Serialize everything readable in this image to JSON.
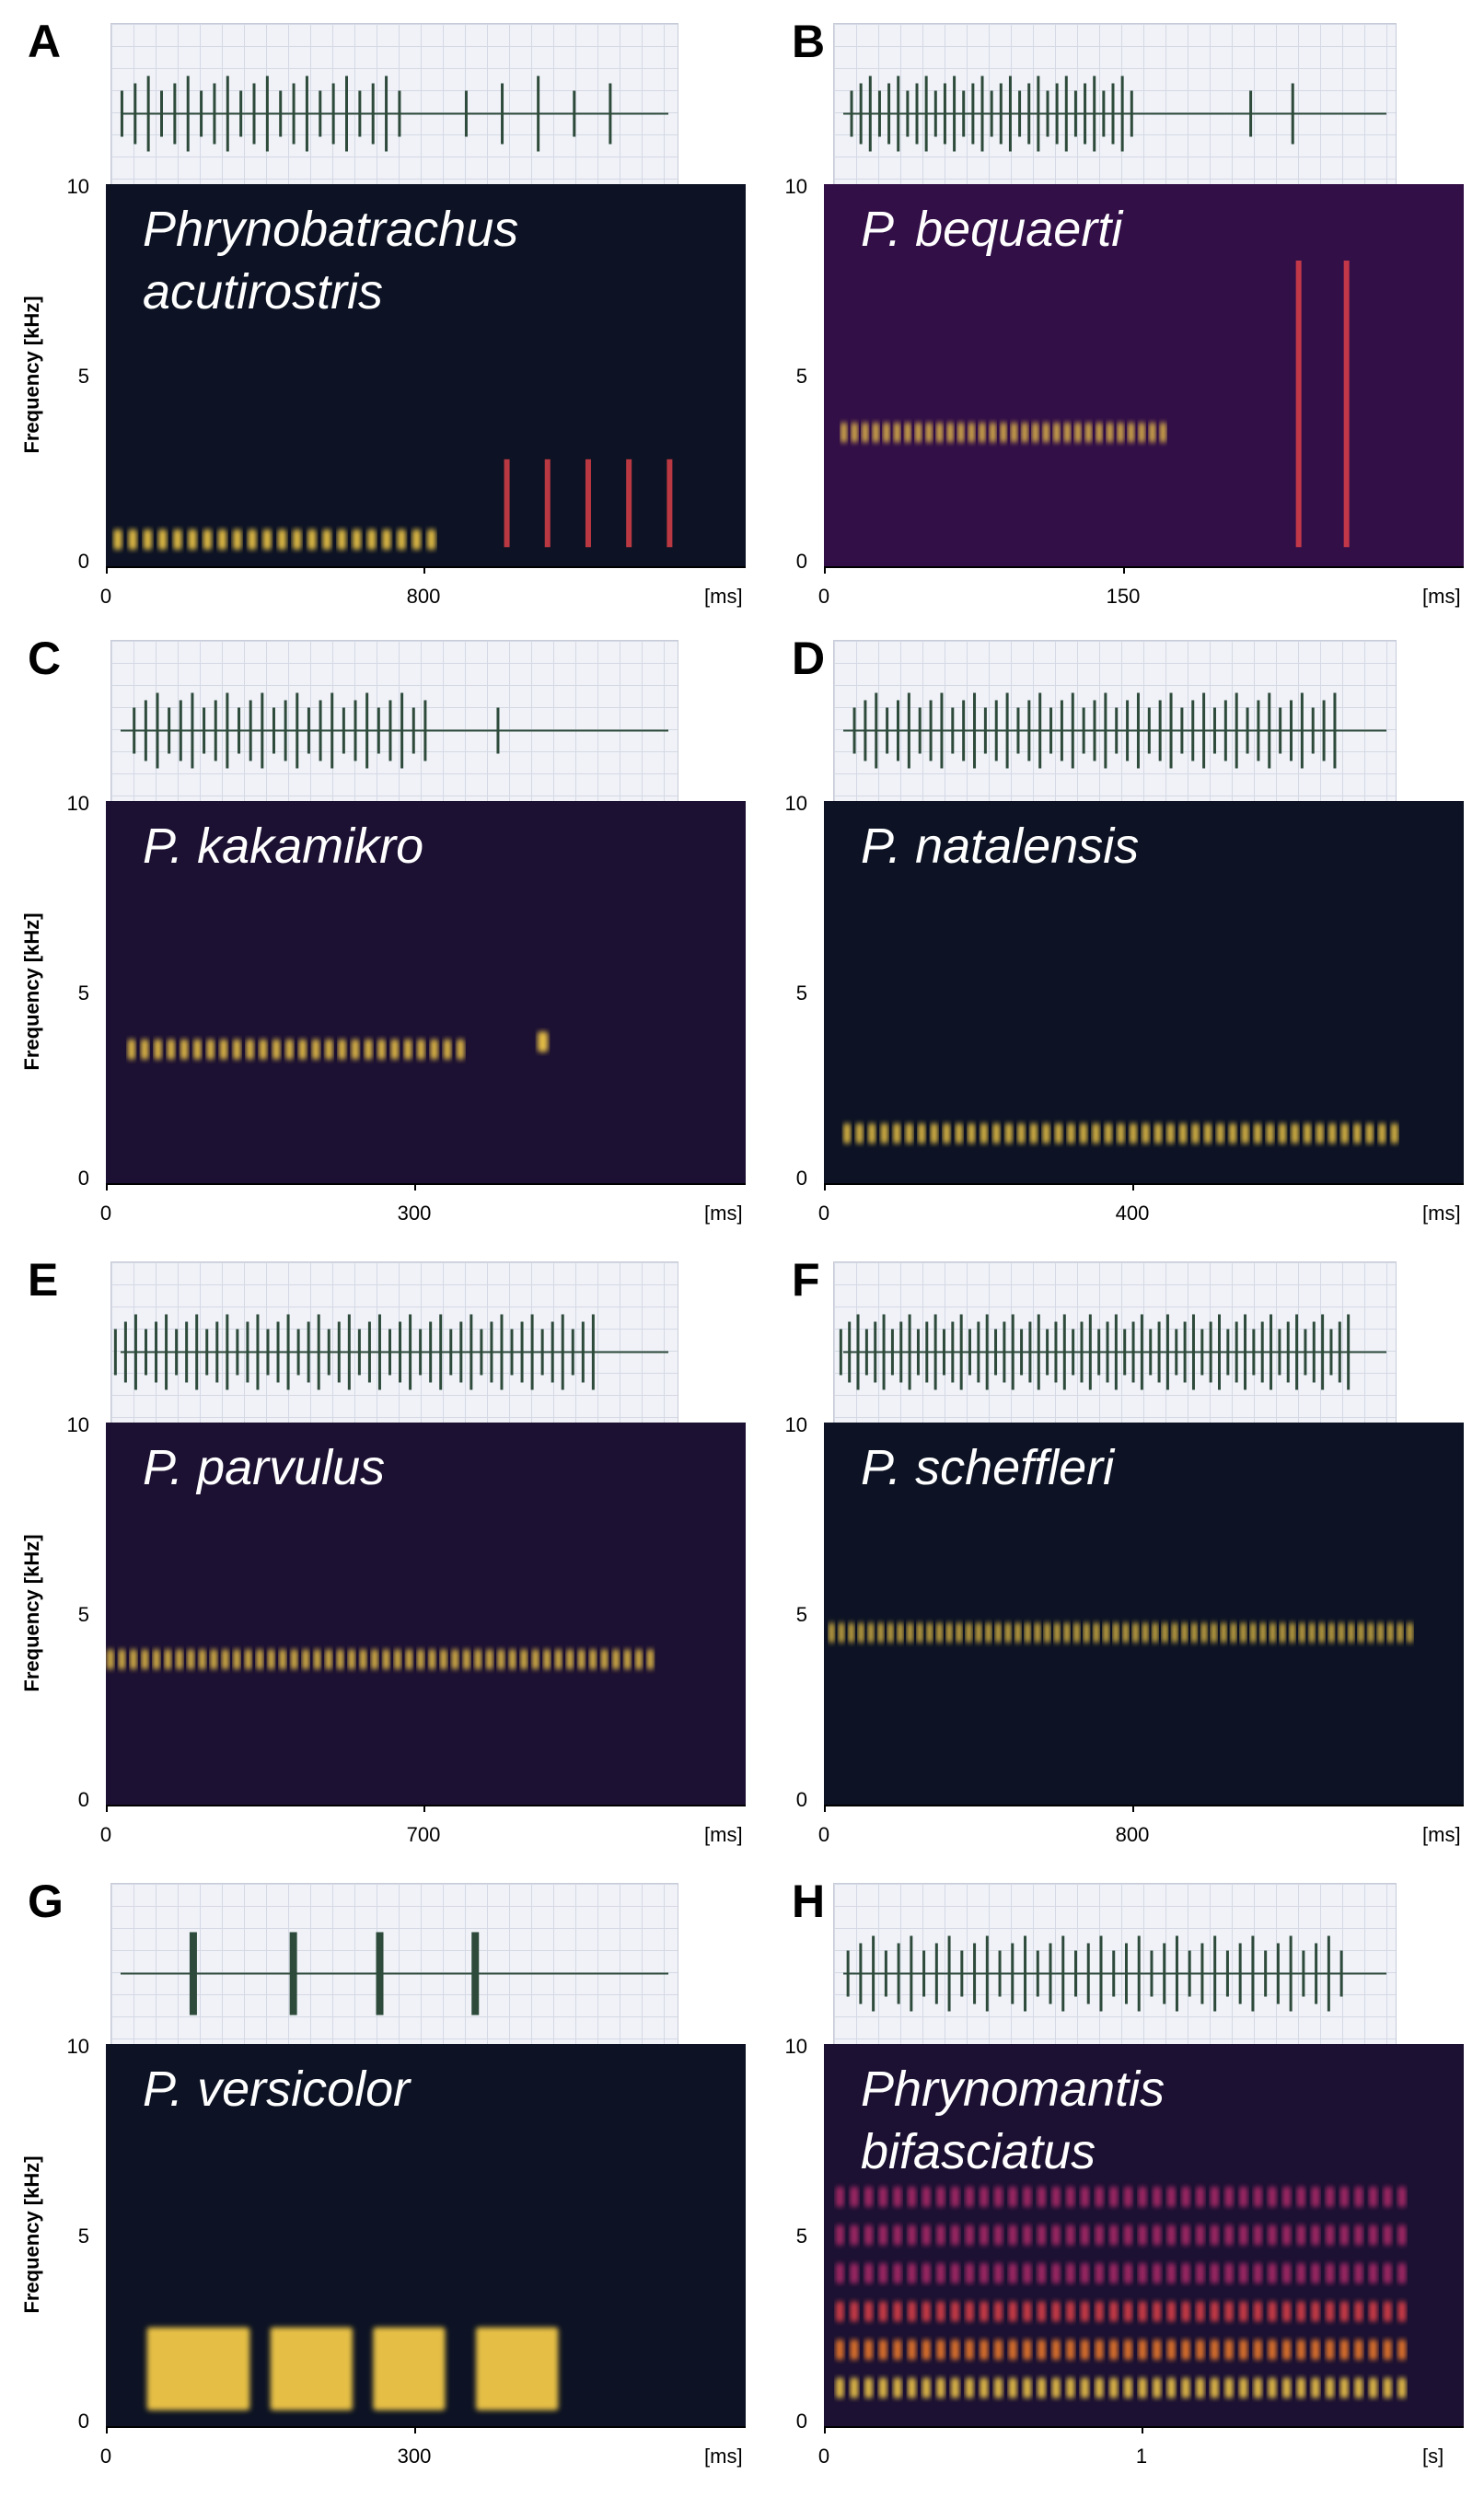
{
  "colormap": [
    "#0d1324",
    "#3a0f4e",
    "#7a1a75",
    "#b32a6c",
    "#e6424a",
    "#f9802a",
    "#fdd24a",
    "#fffbe0"
  ],
  "axis_common": {
    "ylabel": "Frequency [kHz]",
    "yticks": [
      "10",
      "5",
      "0"
    ]
  },
  "panels": [
    {
      "letter": "A",
      "species": "Phrynobatrachus\nacutirostris",
      "xticks": [
        "0",
        "800"
      ],
      "xunit": "[ms]"
    },
    {
      "letter": "B",
      "species": "P. bequaerti",
      "xticks": [
        "0",
        "150"
      ],
      "xunit": "[ms]"
    },
    {
      "letter": "C",
      "species": "P. kakamikro",
      "xticks": [
        "0",
        "300"
      ],
      "xunit": "[ms]"
    },
    {
      "letter": "D",
      "species": "P. natalensis",
      "xticks": [
        "0",
        "400"
      ],
      "xunit": "[ms]"
    },
    {
      "letter": "E",
      "species": "P. parvulus",
      "xticks": [
        "0",
        "700"
      ],
      "xunit": "[ms]"
    },
    {
      "letter": "F",
      "species": "P. scheffleri",
      "xticks": [
        "0",
        "800"
      ],
      "xunit": "[ms]"
    },
    {
      "letter": "G",
      "species": "P. versicolor",
      "xticks": [
        "0",
        "300"
      ],
      "xunit": "[ms]"
    },
    {
      "letter": "H",
      "species": "Phrynomantis\nbifasciatus",
      "xticks": [
        "0",
        "1"
      ],
      "xunit": "[s]"
    }
  ],
  "chart_data": [
    {
      "type": "heatmap",
      "panel": "A",
      "ylim": [
        0,
        10
      ],
      "ylabel": "Frequency [kHz]",
      "xticks": [
        0,
        800
      ],
      "xunit": "ms",
      "notes": [
        {
          "x_ms": [
            30,
            820
          ],
          "f_khz": 0.7,
          "n": 22
        },
        {
          "x_ms": [
            1010,
            1420
          ],
          "f_khz": [
            0.5,
            2.8
          ],
          "n": 5
        }
      ]
    },
    {
      "type": "heatmap",
      "panel": "B",
      "ylim": [
        0,
        10
      ],
      "ylabel": "Frequency [kHz]",
      "xticks": [
        0,
        150
      ],
      "xunit": "ms",
      "notes": [
        {
          "x_ms": [
            10,
            170
          ],
          "f_khz": 3.5,
          "n": 31
        },
        {
          "x_ms": [
            238,
            262
          ],
          "f_khz": [
            0.5,
            8
          ],
          "n": 2
        }
      ]
    },
    {
      "type": "heatmap",
      "panel": "C",
      "ylim": [
        0,
        10
      ],
      "ylabel": "Frequency [kHz]",
      "xticks": [
        0,
        300
      ],
      "xunit": "ms",
      "notes": [
        {
          "x_ms": [
            25,
            345
          ],
          "f_khz": 3.5,
          "n": 26
        },
        {
          "x_ms": [
            420,
            430
          ],
          "f_khz": 3.7,
          "n": 1
        }
      ]
    },
    {
      "type": "heatmap",
      "panel": "D",
      "ylim": [
        0,
        10
      ],
      "ylabel": "Frequency [kHz]",
      "xticks": [
        0,
        400
      ],
      "xunit": "ms",
      "notes": [
        {
          "x_ms": [
            30,
            740
          ],
          "f_khz": 1.3,
          "n": 45
        }
      ]
    },
    {
      "type": "heatmap",
      "panel": "E",
      "ylim": [
        0,
        10
      ],
      "ylabel": "Frequency [kHz]",
      "xticks": [
        0,
        700
      ],
      "xunit": "ms",
      "notes": [
        {
          "x_ms": [
            10,
            1200
          ],
          "f_khz": 3.8,
          "n": 48
        }
      ]
    },
    {
      "type": "heatmap",
      "panel": "F",
      "ylim": [
        0,
        10
      ],
      "ylabel": "Frequency [kHz]",
      "xticks": [
        0,
        800
      ],
      "xunit": "ms",
      "notes": [
        {
          "x_ms": [
            20,
            1520
          ],
          "f_khz": 4.5,
          "n": 60
        }
      ]
    },
    {
      "type": "heatmap",
      "panel": "G",
      "ylim": [
        0,
        10
      ],
      "ylabel": "Frequency [kHz]",
      "xticks": [
        0,
        300
      ],
      "xunit": "ms",
      "notes": [
        {
          "x_ms": [
            40,
            140
          ],
          "f_khz": 1.5,
          "n": 1
        },
        {
          "x_ms": [
            160,
            240
          ],
          "f_khz": 1.5,
          "n": 1
        },
        {
          "x_ms": [
            260,
            330
          ],
          "f_khz": 1.5,
          "n": 1
        },
        {
          "x_ms": [
            360,
            440
          ],
          "f_khz": 1.5,
          "n": 1
        }
      ]
    },
    {
      "type": "heatmap",
      "panel": "H",
      "ylim": [
        0,
        10
      ],
      "ylabel": "Frequency [kHz]",
      "xticks": [
        0,
        1
      ],
      "xunit": "s",
      "notes": [
        {
          "x_s": [
            0.05,
            1.82
          ],
          "f_khz": [
            1.0,
            2.0,
            3.0,
            4.0,
            5.0,
            6.0
          ],
          "n": 40
        }
      ]
    }
  ]
}
